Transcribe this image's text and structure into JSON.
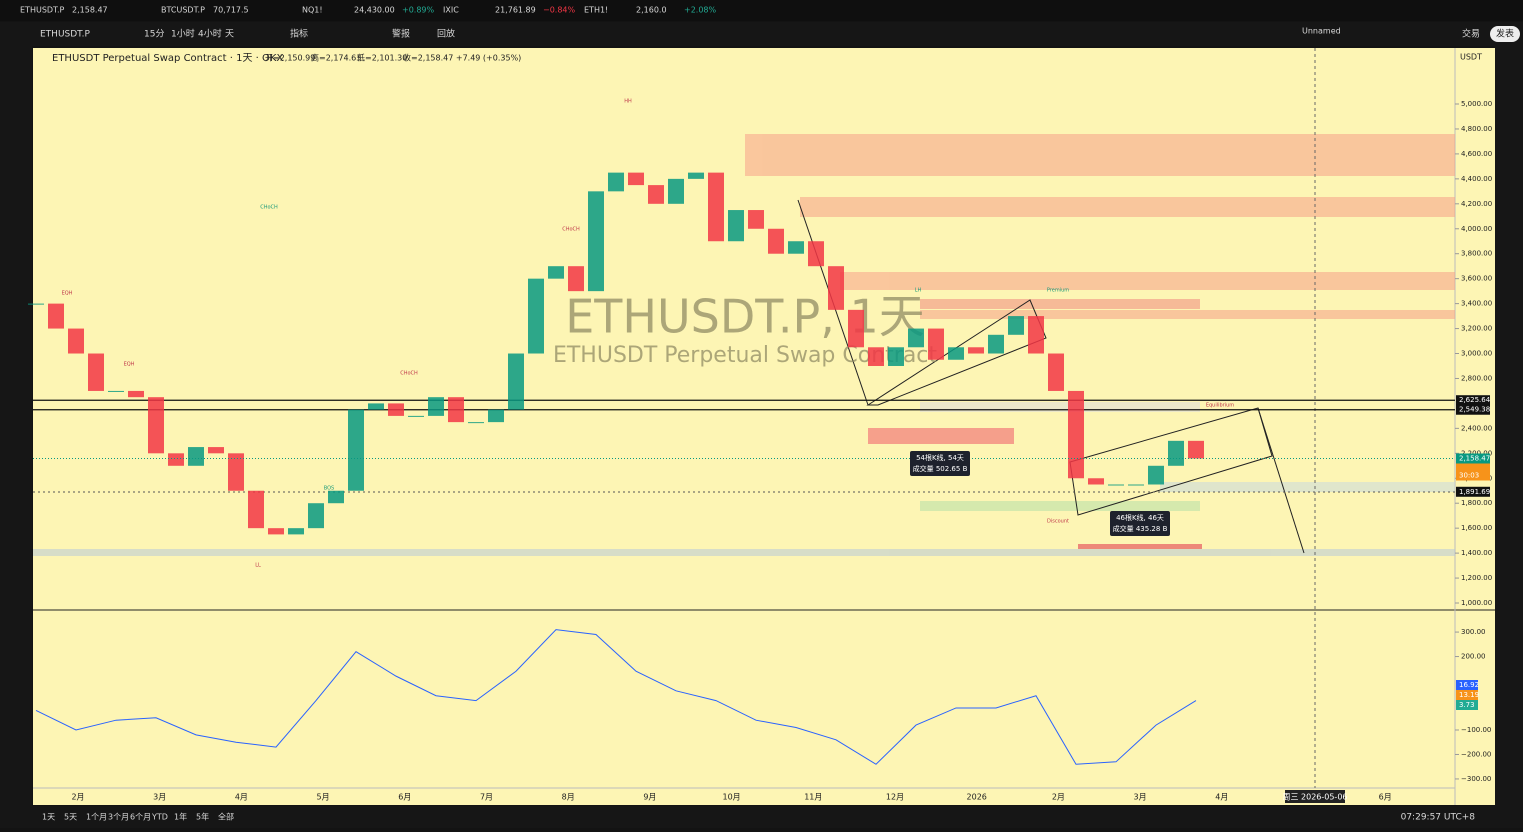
{
  "tabs": [
    {
      "name": "ETHUSDT.P",
      "price": "2,158.47"
    },
    {
      "name": "BTCUSDT.P",
      "price": "70,717.5"
    },
    {
      "name": "NQ1!",
      "price": "24,430.00",
      "change": "+0.89%"
    },
    {
      "name": "IXIC",
      "price": "21,761.89",
      "change": "−0.84%"
    },
    {
      "name": "ETH1!",
      "price": "2,160.0",
      "change": "+2.08%"
    }
  ],
  "toolbar": {
    "symbol": "ETHUSDT.P",
    "intervals": [
      "15分",
      "1小时",
      "4小时",
      "天"
    ],
    "indicators": "指标",
    "alert": "警报",
    "replay": "回放",
    "layout": "Unnamed",
    "trade": "交易",
    "publish": "发表"
  },
  "legend": {
    "title": "ETHUSDT Perpetual Swap Contract · 1天 · OKX",
    "open": "开=2,150.99",
    "high": "高=2,174.63",
    "low": "低=2,101.30",
    "close": "收=2,158.47 +7.49 (+0.35%)"
  },
  "watermark": {
    "symbol": "ETHUSDT.P, 1天",
    "name": "ETHUSDT Perpetual Swap Contract"
  },
  "chart_data": {
    "type": "candlestick",
    "currency": "USDT",
    "closes": [
      3400,
      3200,
      3000,
      2700,
      2700,
      2650,
      2200,
      2100,
      2250,
      2200,
      1900,
      1600,
      1550,
      1600,
      1800,
      1900,
      2550,
      2600,
      2500,
      2500,
      2650,
      2450,
      2450,
      2550,
      3000,
      3600,
      3700,
      3500,
      4300,
      4450,
      4350,
      4200,
      4400,
      4450,
      3900,
      4150,
      4000,
      3800,
      3900,
      3700,
      3350,
      3050,
      2900,
      3050,
      3200,
      2950,
      3050,
      3000,
      3150,
      3300,
      3000,
      2700,
      2000,
      1950,
      1950,
      1950,
      2100,
      2300,
      2158.47
    ],
    "ylim": [
      944,
      5449
    ],
    "yticks": [
      {
        "value": 1000,
        "label": "1,000.00"
      },
      {
        "value": 1200,
        "label": "1,200.00"
      },
      {
        "value": 1400,
        "label": "1,400.00"
      },
      {
        "value": 1600,
        "label": "1,600.00"
      },
      {
        "value": 1800,
        "label": "1,800.00"
      },
      {
        "value": 2000,
        "label": "2,000.00"
      },
      {
        "value": 2200,
        "label": "2,200.00"
      },
      {
        "value": 2400,
        "label": "2,400.00"
      },
      {
        "value": 2800,
        "label": "2,800.00"
      },
      {
        "value": 3000,
        "label": "3,000.00"
      },
      {
        "value": 3200,
        "label": "3,200.00"
      },
      {
        "value": 3400,
        "label": "3,400.00"
      },
      {
        "value": 3600,
        "label": "3,600.00"
      },
      {
        "value": 3800,
        "label": "3,800.00"
      },
      {
        "value": 4000,
        "label": "4,000.00"
      },
      {
        "value": 4200,
        "label": "4,200.00"
      },
      {
        "value": 4400,
        "label": "4,400.00"
      },
      {
        "value": 4600,
        "label": "4,600.00"
      },
      {
        "value": 4800,
        "label": "4,800.00"
      },
      {
        "value": 5000,
        "label": "5,000.00"
      }
    ],
    "hlines": [
      {
        "value": 2625.64,
        "label": "2,625.64"
      },
      {
        "value": 2549.38,
        "label": "2,549.38"
      }
    ],
    "last": {
      "value": 2158.47,
      "label": "2,158.47",
      "countdown": "30:03"
    },
    "low_mark": {
      "value": 1891.69,
      "label": "1,891.69"
    },
    "annotations": [
      "CHoCH",
      "EQH",
      "EQH",
      "BOS",
      "HH",
      "LL",
      "Premium",
      "Discount",
      "Equilibrium",
      "LH",
      "CHoCH",
      "CHoCH"
    ],
    "measures": [
      {
        "bars": "54根K线, 54天",
        "volume": "成交量 502.65 B"
      },
      {
        "bars": "46根K线, 46天",
        "volume": "成交量 435.28 B"
      }
    ]
  },
  "macd": {
    "values": [
      -20,
      -100,
      -60,
      -50,
      -120,
      -150,
      -170,
      20,
      220,
      120,
      40,
      20,
      140,
      310,
      290,
      140,
      60,
      20,
      -60,
      -90,
      -140,
      -240,
      -80,
      -10,
      -10,
      40,
      -240,
      -230,
      -80,
      20
    ],
    "ylim": [
      -337,
      382
    ],
    "yticks": [
      {
        "value": 300,
        "label": "300.00"
      },
      {
        "value": 200,
        "label": "200.00"
      },
      {
        "value": -100,
        "label": "−100.00"
      },
      {
        "value": -200,
        "label": "−200.00"
      },
      {
        "value": -300,
        "label": "−300.00"
      }
    ],
    "readouts": [
      "16.92",
      "13.19",
      "3.73"
    ]
  },
  "time_axis": {
    "categories": [
      "2月",
      "3月",
      "4月",
      "5月",
      "6月",
      "7月",
      "8月",
      "9月",
      "10月",
      "11月",
      "12月",
      "2026",
      "2月",
      "3月",
      "4月",
      null,
      "6月"
    ],
    "crosshair": "周三 2026-05-06"
  },
  "bottom_bar": {
    "ranges": [
      "1天",
      "5天",
      "1个月",
      "3个月",
      "6个月",
      "YTD",
      "1年",
      "5年",
      "全部"
    ],
    "clock": "07:29:57 UTC+8"
  }
}
